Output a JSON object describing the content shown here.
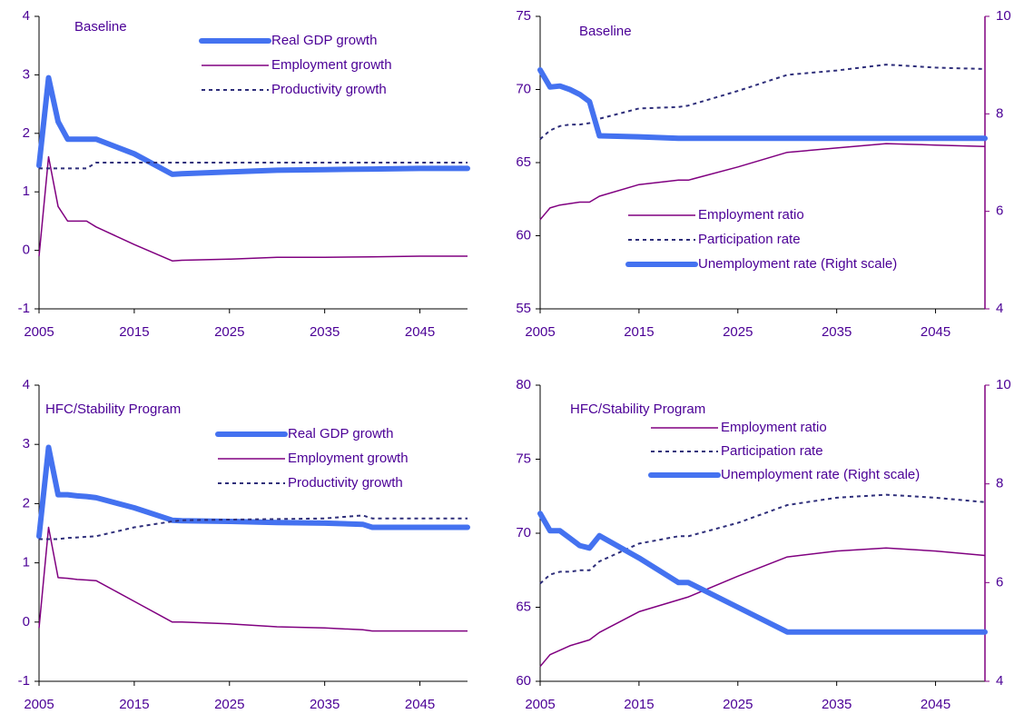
{
  "chart_data": [
    {
      "type": "line",
      "annotation": "Baseline",
      "x": [
        2005,
        2006,
        2007,
        2008,
        2009,
        2010,
        2011,
        2015,
        2019,
        2020,
        2025,
        2030,
        2035,
        2040,
        2045,
        2050
      ],
      "xlim": [
        2005,
        2050
      ],
      "xticks": [
        2005,
        2015,
        2025,
        2035,
        2045
      ],
      "ylim": [
        -1,
        4
      ],
      "yticks": [
        -1,
        0,
        1,
        2,
        3,
        4
      ],
      "series": [
        {
          "name": "Real GDP growth",
          "color": "#4472f0",
          "style": "thick",
          "values": [
            1.45,
            2.95,
            2.2,
            1.9,
            1.9,
            1.9,
            1.9,
            1.65,
            1.3,
            1.31,
            1.34,
            1.37,
            1.38,
            1.39,
            1.4,
            1.4
          ]
        },
        {
          "name": "Employment growth",
          "color": "#800080",
          "style": "thin",
          "values": [
            -0.1,
            1.6,
            0.75,
            0.5,
            0.5,
            0.5,
            0.4,
            0.1,
            -0.18,
            -0.17,
            -0.15,
            -0.12,
            -0.12,
            -0.11,
            -0.1,
            -0.1
          ]
        },
        {
          "name": "Productivity growth",
          "color": "#2e2e7a",
          "style": "dashed",
          "values": [
            1.4,
            1.4,
            1.4,
            1.4,
            1.4,
            1.4,
            1.5,
            1.5,
            1.5,
            1.5,
            1.5,
            1.5,
            1.5,
            1.5,
            1.5,
            1.5
          ]
        }
      ]
    },
    {
      "type": "line",
      "annotation": "Baseline",
      "x": [
        2005,
        2006,
        2007,
        2008,
        2009,
        2010,
        2011,
        2015,
        2019,
        2020,
        2025,
        2030,
        2035,
        2040,
        2045,
        2050
      ],
      "xlim": [
        2005,
        2050
      ],
      "xticks": [
        2005,
        2015,
        2025,
        2035,
        2045
      ],
      "ylim": [
        55,
        75
      ],
      "yticks": [
        55,
        60,
        65,
        70,
        75
      ],
      "y2lim": [
        4,
        10
      ],
      "y2ticks": [
        4,
        6,
        8,
        10
      ],
      "series": [
        {
          "name": "Employment ratio",
          "color": "#800080",
          "style": "thin",
          "values": [
            61.1,
            61.9,
            62.1,
            62.2,
            62.3,
            62.3,
            62.7,
            63.5,
            63.8,
            63.8,
            64.7,
            65.7,
            66.0,
            66.3,
            66.2,
            66.1
          ]
        },
        {
          "name": "Participation rate",
          "color": "#2e2e7a",
          "style": "dashed",
          "values": [
            66.6,
            67.2,
            67.5,
            67.6,
            67.6,
            67.7,
            68.0,
            68.7,
            68.8,
            68.9,
            69.9,
            71.0,
            71.3,
            71.7,
            71.5,
            71.4
          ]
        },
        {
          "name": "Unemployment rate (Right scale)",
          "color": "#4472f0",
          "style": "thick",
          "axis": "y2",
          "values": [
            8.9,
            8.55,
            8.57,
            8.5,
            8.4,
            8.25,
            7.55,
            7.53,
            7.5,
            7.5,
            7.5,
            7.5,
            7.5,
            7.5,
            7.5,
            7.5
          ]
        }
      ]
    },
    {
      "type": "line",
      "annotation": "HFC/Stability Program",
      "x": [
        2005,
        2006,
        2007,
        2008,
        2009,
        2010,
        2011,
        2015,
        2019,
        2020,
        2025,
        2030,
        2035,
        2039,
        2040,
        2045,
        2050
      ],
      "xlim": [
        2005,
        2050
      ],
      "xticks": [
        2005,
        2015,
        2025,
        2035,
        2045
      ],
      "ylim": [
        -1,
        4
      ],
      "yticks": [
        -1,
        0,
        1,
        2,
        3,
        4
      ],
      "series": [
        {
          "name": "Real GDP growth",
          "color": "#4472f0",
          "style": "thick",
          "values": [
            1.45,
            2.95,
            2.15,
            2.15,
            2.13,
            2.12,
            2.1,
            1.93,
            1.72,
            1.71,
            1.7,
            1.68,
            1.67,
            1.65,
            1.6,
            1.6,
            1.6
          ]
        },
        {
          "name": "Employment growth",
          "color": "#800080",
          "style": "thin",
          "values": [
            -0.1,
            1.6,
            0.75,
            0.74,
            0.72,
            0.71,
            0.7,
            0.35,
            0.0,
            0.0,
            -0.03,
            -0.08,
            -0.1,
            -0.13,
            -0.15,
            -0.15,
            -0.15
          ]
        },
        {
          "name": "Productivity growth",
          "color": "#2e2e7a",
          "style": "dashed",
          "values": [
            1.4,
            1.4,
            1.4,
            1.42,
            1.43,
            1.44,
            1.45,
            1.6,
            1.7,
            1.72,
            1.73,
            1.74,
            1.75,
            1.8,
            1.75,
            1.75,
            1.75
          ]
        }
      ]
    },
    {
      "type": "line",
      "annotation": "HFC/Stability Program",
      "x": [
        2005,
        2006,
        2007,
        2008,
        2009,
        2010,
        2011,
        2015,
        2019,
        2020,
        2025,
        2030,
        2035,
        2040,
        2045,
        2050
      ],
      "xlim": [
        2005,
        2050
      ],
      "xticks": [
        2005,
        2015,
        2025,
        2035,
        2045
      ],
      "ylim": [
        60,
        80
      ],
      "yticks": [
        60,
        65,
        70,
        75,
        80
      ],
      "y2lim": [
        4,
        10
      ],
      "y2ticks": [
        4,
        6,
        8,
        10
      ],
      "series": [
        {
          "name": "Employment ratio",
          "color": "#800080",
          "style": "thin",
          "values": [
            61.0,
            61.8,
            62.1,
            62.4,
            62.6,
            62.8,
            63.3,
            64.7,
            65.5,
            65.7,
            67.1,
            68.4,
            68.8,
            69.0,
            68.8,
            68.5
          ]
        },
        {
          "name": "Participation rate",
          "color": "#2e2e7a",
          "style": "dashed",
          "values": [
            66.6,
            67.2,
            67.4,
            67.4,
            67.5,
            67.5,
            68.1,
            69.3,
            69.8,
            69.8,
            70.7,
            71.9,
            72.4,
            72.6,
            72.4,
            72.1
          ]
        },
        {
          "name": "Unemployment rate (Right scale)",
          "color": "#4472f0",
          "style": "thick",
          "axis": "y2",
          "values": [
            7.4,
            7.05,
            7.05,
            6.9,
            6.75,
            6.7,
            6.95,
            6.5,
            6.0,
            6.0,
            5.5,
            5.0,
            5.0,
            5.0,
            5.0,
            5.0
          ]
        }
      ]
    }
  ]
}
